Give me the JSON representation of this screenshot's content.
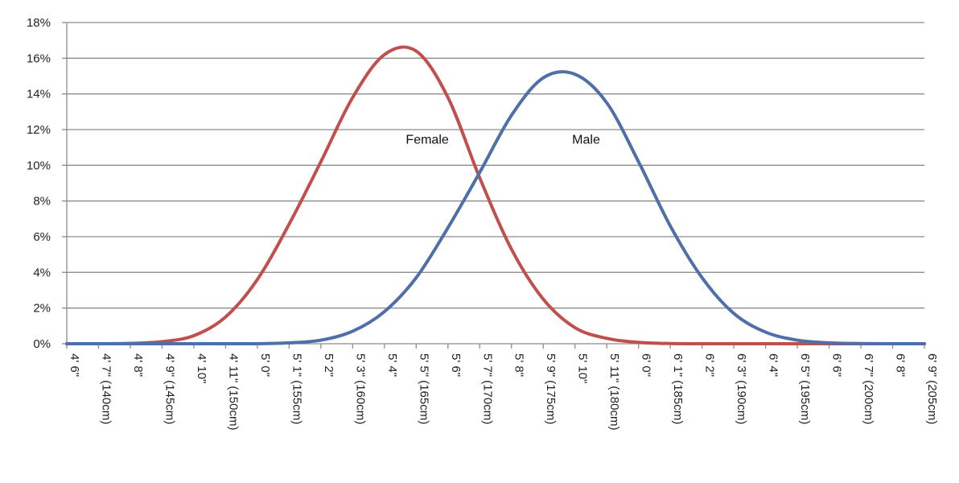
{
  "chart_data": {
    "type": "line",
    "title": "",
    "xlabel": "",
    "ylabel": "",
    "ylim": [
      0,
      18
    ],
    "y_tick_values": [
      0,
      2,
      4,
      6,
      8,
      10,
      12,
      14,
      16,
      18
    ],
    "y_tick_labels": [
      "0%",
      "2%",
      "4%",
      "6%",
      "8%",
      "10%",
      "12%",
      "14%",
      "16%",
      "18%"
    ],
    "grid": true,
    "legend": "none",
    "x_tick_labels": [
      "4' 6\"",
      "4' 7\" (140cm)",
      "4' 8\"",
      "4' 9\" (145cm)",
      "4' 10\"",
      "4' 11\" (150cm)",
      "5' 0\"",
      "5' 1\" (155cm)",
      "5' 2\"",
      "5' 3\" (160cm)",
      "5' 4\"",
      "5' 5\" (165cm)",
      "5' 6\"",
      "5' 7\" (170cm)",
      "5' 8\"",
      "5' 9\" (175cm)",
      "5' 10\"",
      "5' 11\" (180cm)",
      "6' 0\"",
      "6' 1\" (185cm)",
      "6' 2\"",
      "6' 3\" (190cm)",
      "6' 4\"",
      "6' 5\" (195cm)",
      "6' 6\"",
      "6' 7\" (200cm)",
      "6' 8\"",
      "6' 9\" (205cm)"
    ],
    "series": [
      {
        "color": "#c0504d",
        "values": [
          0,
          0,
          0.02,
          0.12,
          0.45,
          1.5,
          3.6,
          6.7,
          10.2,
          13.8,
          16.2,
          16.4,
          13.8,
          9.3,
          5.3,
          2.5,
          0.9,
          0.3,
          0.08,
          0.01,
          0,
          0,
          0,
          0,
          0,
          0,
          0,
          0
        ]
      },
      {
        "color": "#4f6fa8",
        "values": [
          0,
          0,
          0,
          0,
          0,
          0,
          0,
          0.05,
          0.2,
          0.7,
          1.8,
          3.7,
          6.5,
          9.6,
          12.8,
          14.9,
          15.1,
          13.5,
          10.2,
          6.6,
          3.7,
          1.7,
          0.65,
          0.2,
          0.05,
          0.01,
          0,
          0
        ]
      }
    ],
    "annotations": [
      {
        "text": "Female",
        "x_index": 11.35,
        "y": 11.2
      },
      {
        "text": "Male",
        "x_index": 16.35,
        "y": 11.2
      }
    ]
  }
}
